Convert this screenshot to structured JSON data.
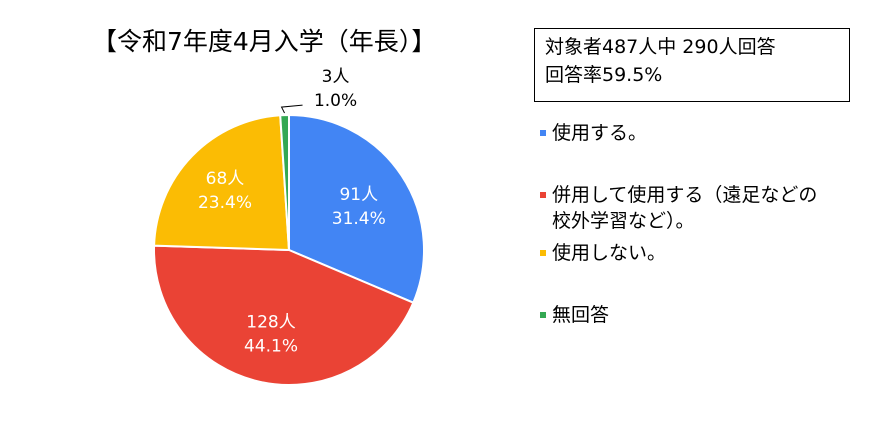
{
  "title": "【令和7年度4月入学（年長）】",
  "info": {
    "line1": "対象者487人中 290人回答",
    "line2": "回答率59.5%"
  },
  "chart_data": {
    "type": "pie",
    "total_respondents": 290,
    "slices": [
      {
        "label": "使用する。",
        "count": 91,
        "count_label": "91人",
        "percent": 31.4,
        "percent_label": "31.4%",
        "color": "#4285F4"
      },
      {
        "label": "併用して使用する（遠足などの校外学習など）。",
        "label_lines": [
          "併用して使用する（遠足などの",
          "校外学習など）。"
        ],
        "count": 128,
        "count_label": "128人",
        "percent": 44.1,
        "percent_label": "44.1%",
        "color": "#EA4335"
      },
      {
        "label": "使用しない。",
        "count": 68,
        "count_label": "68人",
        "percent": 23.4,
        "percent_label": "23.4%",
        "color": "#FBBC04"
      },
      {
        "label": "無回答",
        "count": 3,
        "count_label": "3人",
        "percent": 1.0,
        "percent_label": "1.0%",
        "color": "#34A853"
      }
    ],
    "legend_position": "right"
  }
}
